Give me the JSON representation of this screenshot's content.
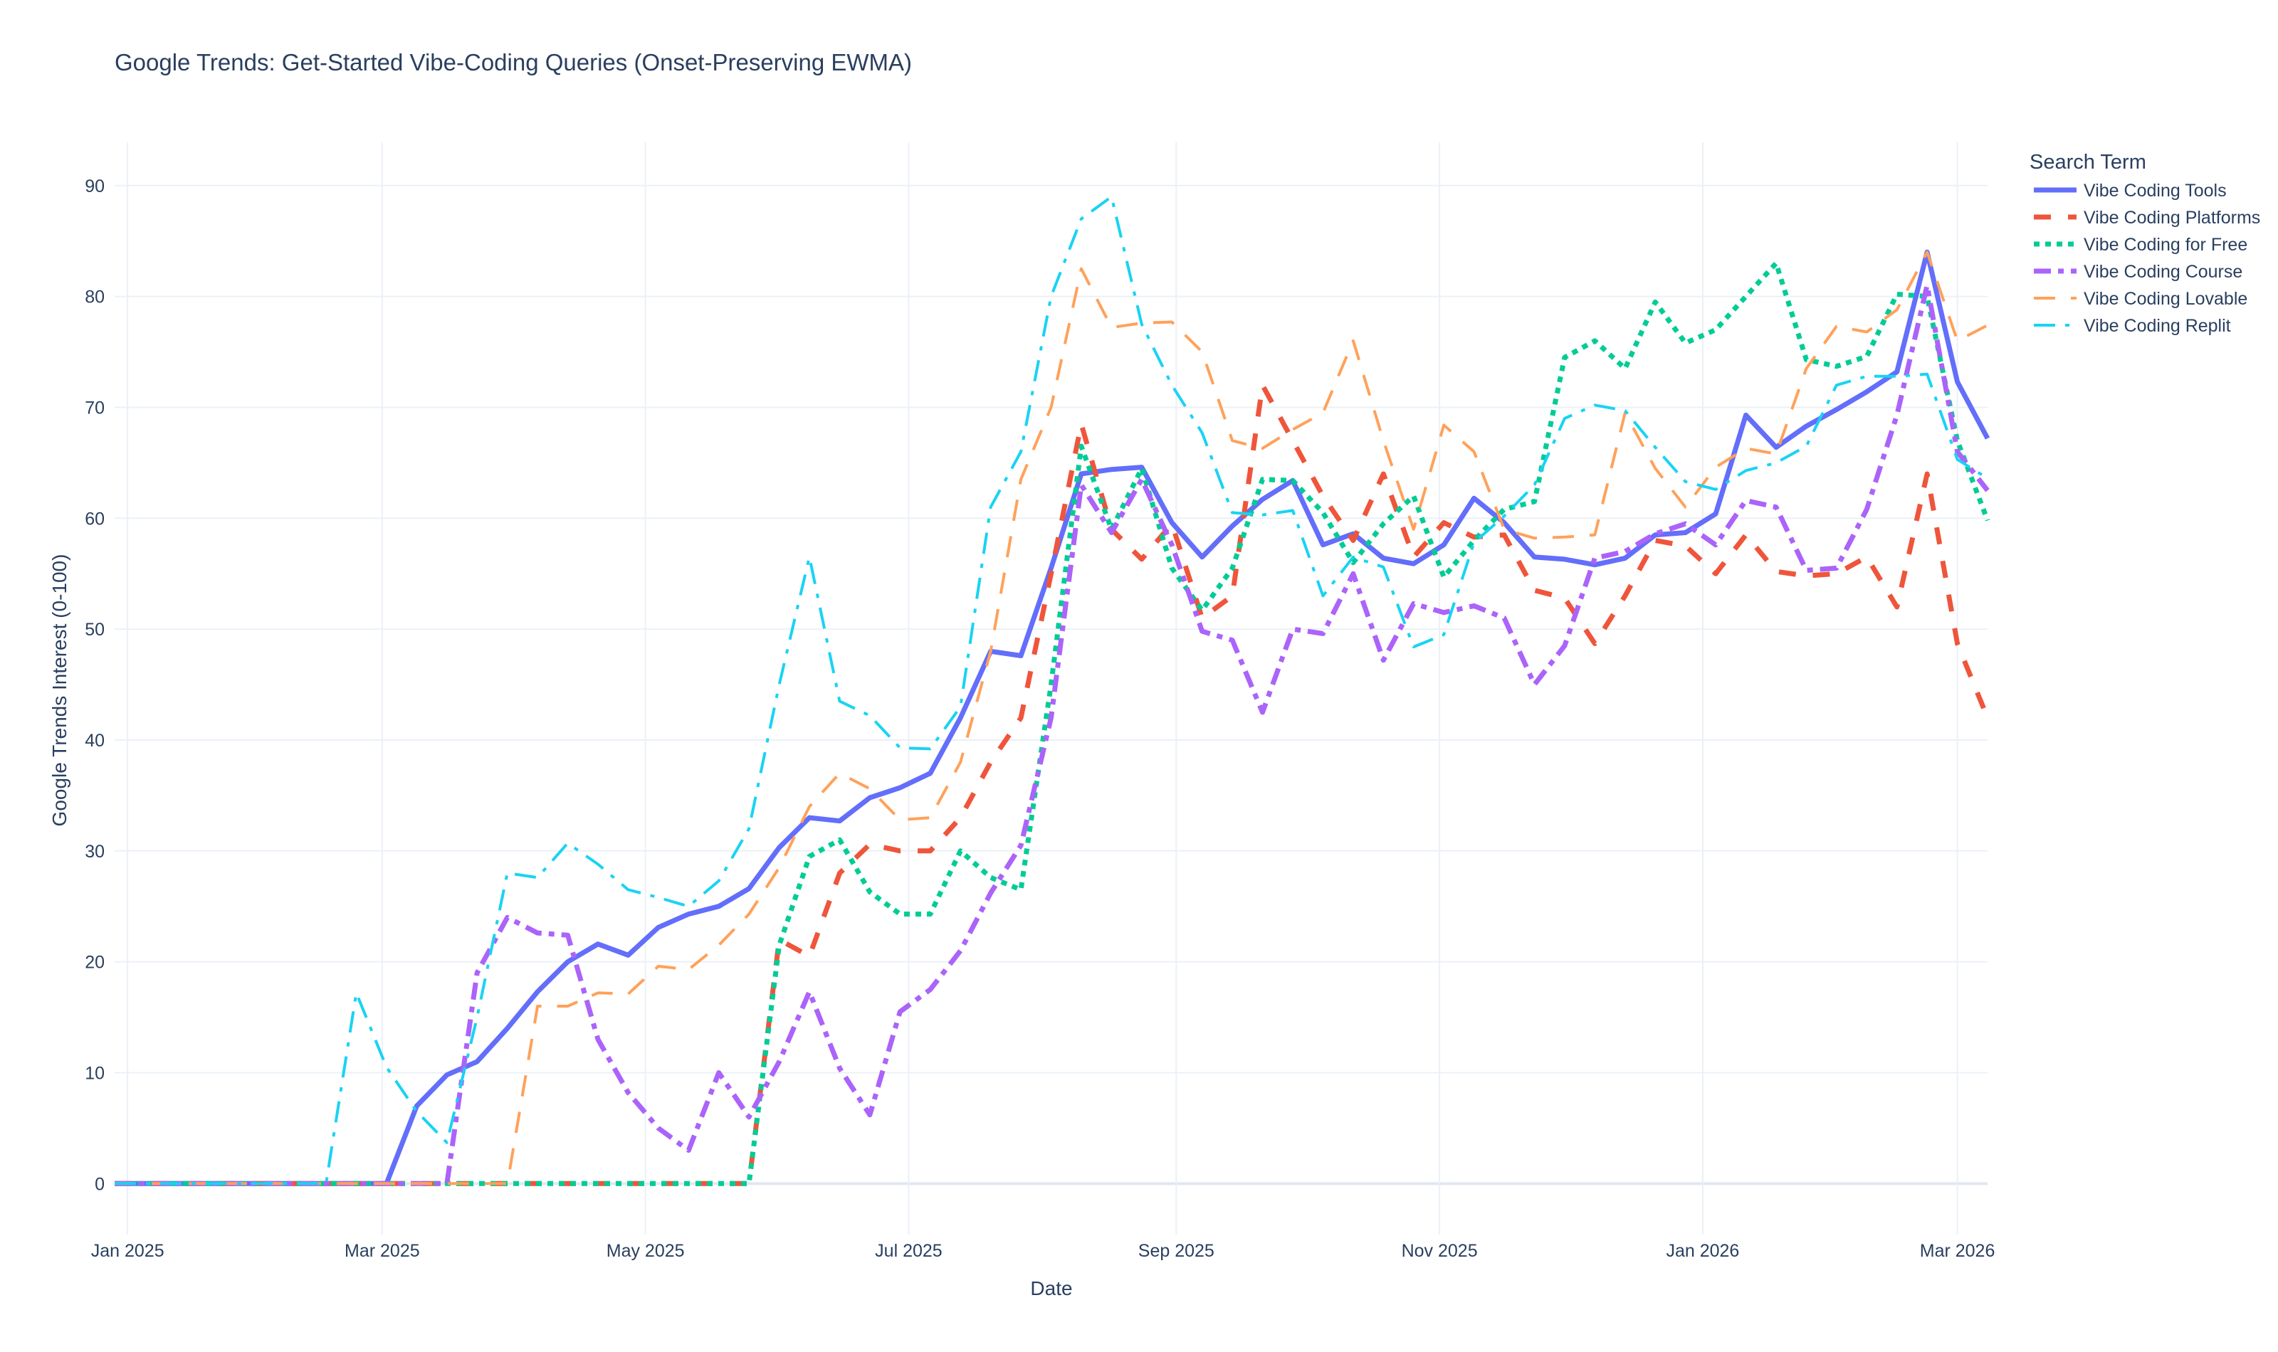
{
  "chart_data": {
    "type": "line",
    "title": "Google Trends: Get-Started Vibe-Coding Queries (Onset-Preserving EWMA)",
    "xlabel": "Date",
    "ylabel": "Google Trends Interest (0-100)",
    "legend_title": "Search Term",
    "legend_placement": "right",
    "grid": true,
    "x_start": "2024-12-29",
    "x_end": "2026-03-08",
    "x_step_days": 7,
    "xlim": [
      "2024-12-29",
      "2026-03-08"
    ],
    "ylim": [
      -4.6,
      93.9
    ],
    "x_ticks": [
      {
        "date": "2025-01-01",
        "label": "Jan 2025"
      },
      {
        "date": "2025-03-01",
        "label": "Mar 2025"
      },
      {
        "date": "2025-05-01",
        "label": "May 2025"
      },
      {
        "date": "2025-07-01",
        "label": "Jul 2025"
      },
      {
        "date": "2025-09-01",
        "label": "Sep 2025"
      },
      {
        "date": "2025-11-01",
        "label": "Nov 2025"
      },
      {
        "date": "2026-01-01",
        "label": "Jan 2026"
      },
      {
        "date": "2026-03-01",
        "label": "Mar 2026"
      }
    ],
    "y_ticks": [
      0,
      10,
      20,
      30,
      40,
      50,
      60,
      70,
      80,
      90
    ],
    "series": [
      {
        "name": "Vibe Coding Tools",
        "color": "#636efa",
        "style": "solid",
        "values": [
          0,
          0,
          0,
          0,
          0,
          0,
          0,
          0,
          0,
          0,
          7,
          9.8,
          11,
          14,
          17.3,
          20,
          21.6,
          20.6,
          23.1,
          24.3,
          25,
          26.6,
          30.3,
          33,
          32.7,
          34.8,
          35.7,
          37,
          42,
          48,
          47.6,
          55.5,
          64,
          64.4,
          64.6,
          59.6,
          56.5,
          59.3,
          61.7,
          63.4,
          57.6,
          58.6,
          56.4,
          55.9,
          57.6,
          61.8,
          59.6,
          56.5,
          56.3,
          55.8,
          56.4,
          58.5,
          58.7,
          60.4,
          69.3,
          66.4,
          68.3,
          69.8,
          71.4,
          73.2,
          84,
          72.3,
          67.2
        ]
      },
      {
        "name": "Vibe Coding Platforms",
        "color": "#EF553B",
        "style": "dash",
        "values": [
          0,
          0,
          0,
          0,
          0,
          0,
          0,
          0,
          0,
          0,
          0,
          0,
          0,
          0,
          0,
          0,
          0,
          0,
          0,
          0,
          0,
          0,
          22,
          20.5,
          28,
          30.6,
          30,
          30,
          33,
          38,
          42,
          55,
          68.5,
          59,
          56.3,
          59.5,
          51,
          53,
          72,
          67,
          62,
          58,
          64,
          56.5,
          59.6,
          58.3,
          58.5,
          53.5,
          52.8,
          48.7,
          53,
          58,
          57.5,
          55,
          58.5,
          55.2,
          54.8,
          55,
          56.5,
          52,
          64,
          48.7,
          42
        ]
      },
      {
        "name": "Vibe Coding for Free",
        "color": "#00cc96",
        "style": "dot",
        "values": [
          0,
          0,
          0,
          0,
          0,
          0,
          0,
          0,
          0,
          0,
          0,
          0,
          0,
          0,
          0,
          0,
          0,
          0,
          0,
          0,
          0,
          0,
          21.5,
          29.5,
          31,
          26.3,
          24.3,
          24.3,
          30,
          27.6,
          26.5,
          45,
          66.5,
          59,
          64.5,
          55.5,
          51.7,
          55.5,
          63.5,
          63.4,
          60.5,
          56,
          59.5,
          62,
          54.7,
          58,
          60.8,
          61.5,
          74.5,
          76,
          73.5,
          79.5,
          75.8,
          77,
          80,
          83,
          74.3,
          73.7,
          74.6,
          80.2,
          80,
          67,
          59.8
        ]
      },
      {
        "name": "Vibe Coding Course",
        "color": "#ab63fa",
        "style": "dashdot",
        "values": [
          0,
          0,
          0,
          0,
          0,
          0,
          0,
          0,
          0,
          0,
          0,
          0,
          19,
          24,
          22.6,
          22.4,
          13,
          8.2,
          5,
          3,
          10,
          6,
          11,
          17.3,
          10.4,
          6.2,
          15.5,
          17.5,
          21,
          26.2,
          30.5,
          42,
          63,
          58.7,
          63.5,
          57.6,
          49.8,
          49,
          42.5,
          50,
          49.6,
          55,
          47.2,
          52.3,
          51.5,
          52.1,
          51,
          45,
          48.5,
          56.4,
          57,
          58.6,
          59.5,
          57.6,
          61.6,
          61,
          55.3,
          55.5,
          60.8,
          69.3,
          81,
          66,
          62.5
        ]
      },
      {
        "name": "Vibe Coding Lovable",
        "color": "#FFA15A",
        "style": "longdash",
        "values": [
          0,
          0,
          0,
          0,
          0,
          0,
          0,
          0,
          0,
          0,
          0,
          0,
          0,
          0,
          16,
          16,
          17.2,
          17.1,
          19.6,
          19.3,
          21.5,
          24.3,
          28.5,
          34,
          37,
          35.6,
          32.8,
          33,
          38,
          48,
          63.5,
          70,
          82.5,
          77.2,
          77.6,
          77.7,
          75,
          67,
          66.3,
          68,
          69.5,
          76,
          67,
          59,
          68.4,
          66,
          59,
          58.2,
          58.3,
          58.5,
          69.5,
          64.5,
          61,
          64.6,
          66.3,
          65.8,
          73.5,
          77.3,
          76.8,
          78.8,
          84,
          76,
          77.4
        ]
      },
      {
        "name": "Vibe Coding Replit",
        "color": "#19d3f3",
        "style": "longdashdot",
        "values": [
          0,
          0,
          0,
          0,
          0,
          0,
          0,
          0,
          17.2,
          10.5,
          6.5,
          3.7,
          15,
          28,
          27.6,
          30.7,
          28.8,
          26.5,
          25.8,
          25,
          27.3,
          32,
          45,
          56.5,
          43.5,
          42.2,
          39.3,
          39.2,
          43,
          61,
          66,
          80,
          87,
          89,
          77.5,
          72,
          67.7,
          60.5,
          60.3,
          60.7,
          53,
          56.5,
          55.6,
          48.4,
          49.5,
          57.8,
          60.2,
          63,
          69,
          70.2,
          69.7,
          66.4,
          63.3,
          62.6,
          64.3,
          65,
          66.5,
          72,
          72.8,
          72.8,
          73,
          65.3,
          63.6
        ]
      }
    ]
  }
}
